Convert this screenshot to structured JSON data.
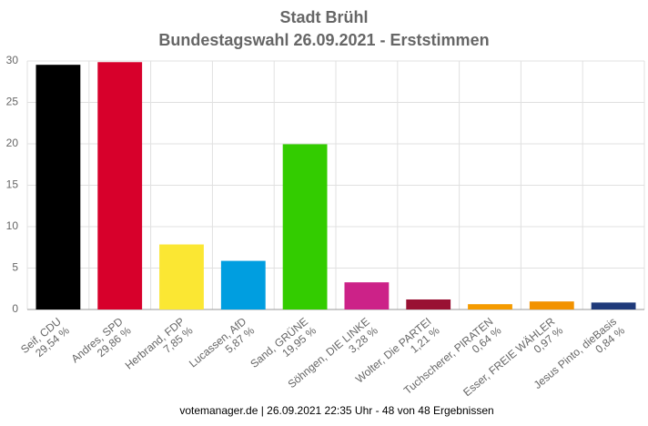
{
  "chart_data": {
    "type": "bar",
    "title": "Stadt Brühl",
    "subtitle": "Bundestagswahl 26.09.2021  - Erststimmen",
    "footer": "votemanager.de | 26.09.2021 22:35 Uhr - 48 von 48 Ergebnissen",
    "categories": [
      "Seif, CDU",
      "Andres, SPD",
      "Herbrand, FDP",
      "Lucassen, AfD",
      "Sand, GRÜNE",
      "Söhngen, DIE LINKE",
      "Wolter, Die PARTEI",
      "Tuchscherer, PIRATEN",
      "Esser, FREIE WÄHLER",
      "Jesus Pinto, dieBasis"
    ],
    "values": [
      29.54,
      29.86,
      7.85,
      5.87,
      19.95,
      3.28,
      1.21,
      0.64,
      0.97,
      0.84
    ],
    "value_labels": [
      "29,54 %",
      "29,86 %",
      "7,85 %",
      "5,87 %",
      "19,95 %",
      "3,28 %",
      "1,21 %",
      "0,64 %",
      "0,97 %",
      "0,84 %"
    ],
    "colors": [
      "#000000",
      "#d7002b",
      "#fbe733",
      "#009ee0",
      "#33cc00",
      "#cc2288",
      "#991133",
      "#f59b00",
      "#f29200",
      "#1f3a7a"
    ],
    "ylim": [
      0,
      30
    ],
    "yticks": [
      0,
      5,
      10,
      15,
      20,
      25,
      30
    ],
    "grid": true
  }
}
